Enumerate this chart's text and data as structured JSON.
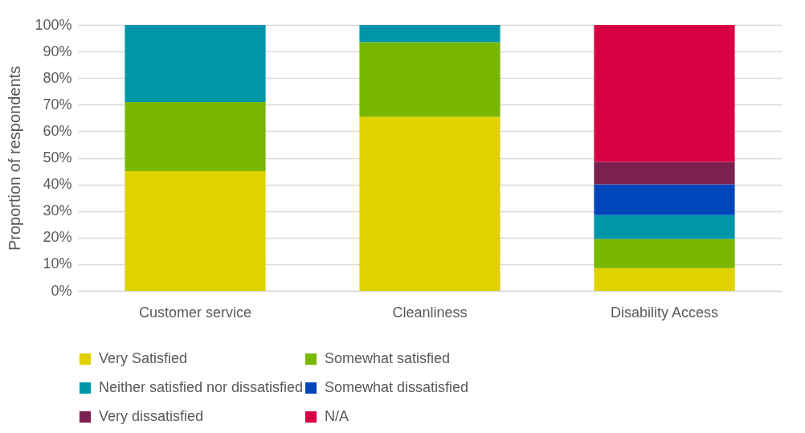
{
  "chart_data": {
    "type": "bar",
    "stacked": true,
    "ylabel": "Proportion of respondents",
    "categories": [
      "Customer service",
      "Cleanliness",
      "Disability Access"
    ],
    "series": [
      {
        "name": "Very Satisfied",
        "color": "#e0d100",
        "values": [
          45,
          65.5,
          8.5
        ]
      },
      {
        "name": "Somewhat satisfied",
        "color": "#78b800",
        "values": [
          26,
          28,
          11
        ]
      },
      {
        "name": "Neither satisfied nor dissatisfied",
        "color": "#0096aa",
        "values": [
          29,
          6.5,
          9
        ]
      },
      {
        "name": "Somewhat dissatisfied",
        "color": "#0046bb",
        "values": [
          0,
          0,
          11.5
        ]
      },
      {
        "name": "Very dissatisfied",
        "color": "#7b214f",
        "values": [
          0,
          0,
          8.5
        ]
      },
      {
        "name": "N/A",
        "color": "#d80045",
        "values": [
          0,
          0,
          51.5
        ]
      }
    ],
    "ylim": [
      0,
      100
    ],
    "yticks": [
      {
        "value": 0,
        "label": "0%"
      },
      {
        "value": 10,
        "label": "10%"
      },
      {
        "value": 20,
        "label": "20%"
      },
      {
        "value": 30,
        "label": "30%"
      },
      {
        "value": 40,
        "label": "40%"
      },
      {
        "value": 50,
        "label": "50%"
      },
      {
        "value": 60,
        "label": "60%"
      },
      {
        "value": 70,
        "label": "70%"
      },
      {
        "value": 80,
        "label": "80%"
      },
      {
        "value": 90,
        "label": "90%"
      },
      {
        "value": 100,
        "label": "100%"
      }
    ],
    "grid": "y",
    "legend": "bottom"
  }
}
